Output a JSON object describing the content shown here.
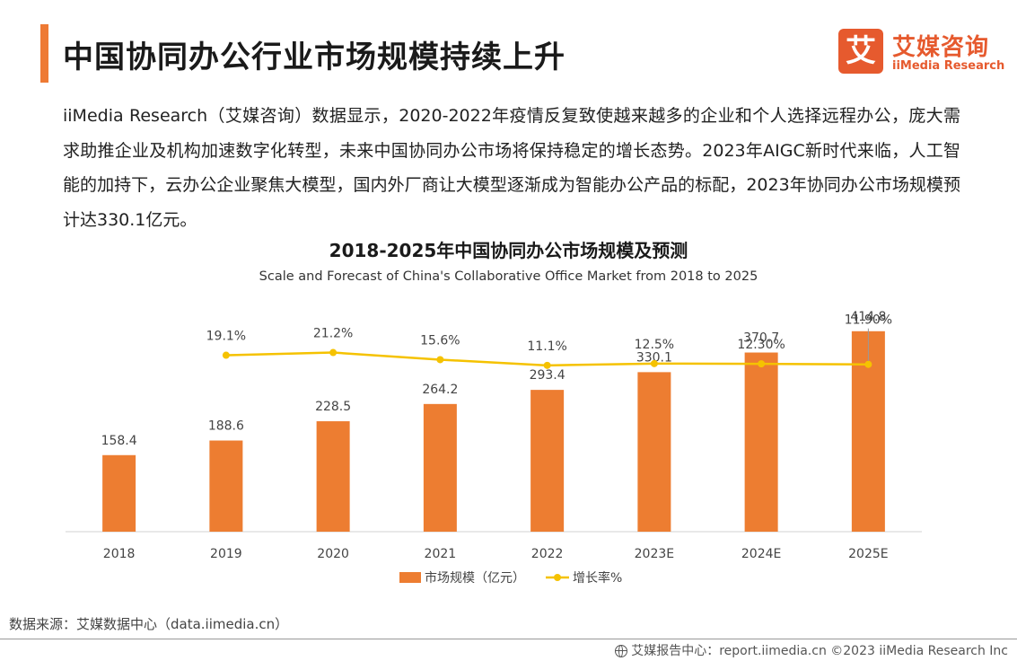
{
  "header": {
    "title": "中国协同办公行业市场规模持续上升",
    "logo_mark": "艾",
    "logo_cn": "艾媒咨询",
    "logo_en": "iiMedia Research"
  },
  "intro": "iiMedia Research（艾媒咨询）数据显示，2020-2022年疫情反复致使越来越多的企业和个人选择远程办公，庞大需求助推企业及机构加速数字化转型，未来中国协同办公市场将保持稳定的增长态势。2023年AIGC新时代来临，人工智能的加持下，云办公企业聚焦大模型，国内外厂商让大模型逐渐成为智能办公产品的标配，2023年协同办公市场规模预计达330.1亿元。",
  "chart_data": {
    "type": "bar",
    "title": "2018-2025年中国协同办公市场规模及预测",
    "subtitle": "Scale and Forecast of China's Collaborative Office Market from 2018 to 2025",
    "categories": [
      "2018",
      "2019",
      "2020",
      "2021",
      "2022",
      "2023E",
      "2024E",
      "2025E"
    ],
    "series": [
      {
        "name": "市场规模（亿元）",
        "type": "bar",
        "axis": "left",
        "values": [
          158.4,
          188.6,
          228.5,
          264.2,
          293.4,
          330.1,
          370.7,
          414.8
        ],
        "labels": [
          "158.4",
          "188.6",
          "228.5",
          "264.2",
          "293.4",
          "330.1",
          "370.7",
          "414.8"
        ],
        "color": "#ed7d31"
      },
      {
        "name": "增长率%",
        "type": "line",
        "axis": "right",
        "values": [
          null,
          19.1,
          21.2,
          15.6,
          11.1,
          12.5,
          12.3,
          11.9
        ],
        "labels": [
          "",
          "19.1%",
          "21.2%",
          "15.6%",
          "11.1%",
          "12.5%",
          "12.30%",
          "11.90%"
        ],
        "color": "#f5c200"
      }
    ],
    "ylim_left": [
      0,
      420
    ],
    "ylim_right": [
      -120,
      40
    ],
    "grid": false,
    "legend": "bottom-center"
  },
  "source": "数据来源：艾媒数据中心（data.iimedia.cn）",
  "footer": "艾媒报告中心：report.iimedia.cn  ©2023  iiMedia Research  Inc"
}
